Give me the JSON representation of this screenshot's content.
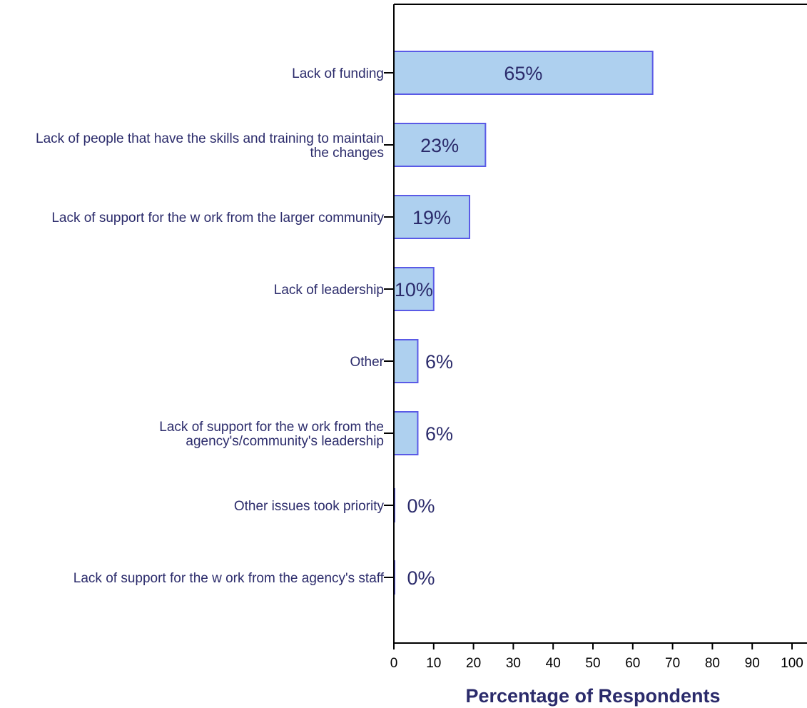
{
  "chart_data": {
    "type": "bar",
    "orientation": "horizontal",
    "categories": [
      [
        "Lack of funding"
      ],
      [
        "Lack of people that have the skills and training to maintain",
        "the changes"
      ],
      [
        "Lack of support for the w ork from the larger community"
      ],
      [
        "Lack of leadership"
      ],
      [
        "Other"
      ],
      [
        "Lack of support for the w ork from the",
        "agency's/community's leadership"
      ],
      [
        "Other issues took priority"
      ],
      [
        "Lack of support for the w ork from the agency's staff"
      ]
    ],
    "values": [
      65,
      23,
      19,
      10,
      6,
      6,
      0,
      0
    ],
    "value_labels": [
      "65%",
      "23%",
      "19%",
      "10%",
      "6%",
      "6%",
      "0%",
      "0%"
    ],
    "xlabel": "Percentage of Respondents",
    "xlim": [
      0,
      100
    ],
    "xticks": [
      "0",
      "10",
      "20",
      "30",
      "40",
      "50",
      "60",
      "70",
      "80",
      "90",
      "100"
    ],
    "grid": false,
    "colors": {
      "bar_fill": "#aed0ef",
      "bar_stroke": "#5a5ae6",
      "label_text": "#2b2b6b",
      "axis": "#000000"
    }
  }
}
